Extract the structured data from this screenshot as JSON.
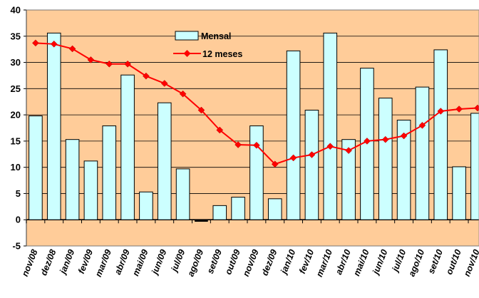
{
  "chart_data": {
    "type": "bar",
    "categories": [
      "nov/08",
      "dez/08",
      "jan/09",
      "fev/09",
      "mar/09",
      "abr/09",
      "mai/09",
      "jun/09",
      "jul/09",
      "ago/09",
      "set/09",
      "out/09",
      "nov/09",
      "dez/09",
      "jan/10",
      "fev/10",
      "mar/10",
      "abr/10",
      "mai/10",
      "jun/10",
      "jul/10",
      "ago/10",
      "set/10",
      "out/10",
      "nov/10"
    ],
    "series": [
      {
        "name": "Mensal",
        "kind": "bar",
        "color": "#ccffff",
        "values": [
          19.8,
          35.6,
          15.3,
          11.2,
          17.9,
          27.6,
          5.3,
          22.3,
          9.7,
          -0.3,
          2.7,
          4.3,
          17.9,
          4.0,
          32.2,
          20.9,
          35.6,
          15.3,
          28.9,
          23.2,
          19.0,
          25.3,
          32.4,
          10.1,
          20.3
        ]
      },
      {
        "name": "12 meses",
        "kind": "line",
        "color": "#ff0000",
        "values": [
          33.7,
          33.5,
          32.6,
          30.5,
          29.7,
          29.7,
          27.4,
          26.0,
          24.0,
          20.9,
          17.1,
          14.3,
          14.2,
          10.6,
          11.8,
          12.4,
          14.0,
          13.2,
          15.0,
          15.3,
          16.0,
          18.0,
          20.7,
          21.1,
          21.3
        ]
      }
    ],
    "yticks": [
      "-5",
      "0",
      "5",
      "10",
      "15",
      "20",
      "25",
      "30",
      "35",
      "40"
    ],
    "ylim": [
      -5,
      40
    ],
    "legend_position": "top-center",
    "colors": {
      "plot_background": "#ffcc99",
      "bar_fill": "#ccffff",
      "line": "#ff0000",
      "gridline": "#000000"
    }
  }
}
